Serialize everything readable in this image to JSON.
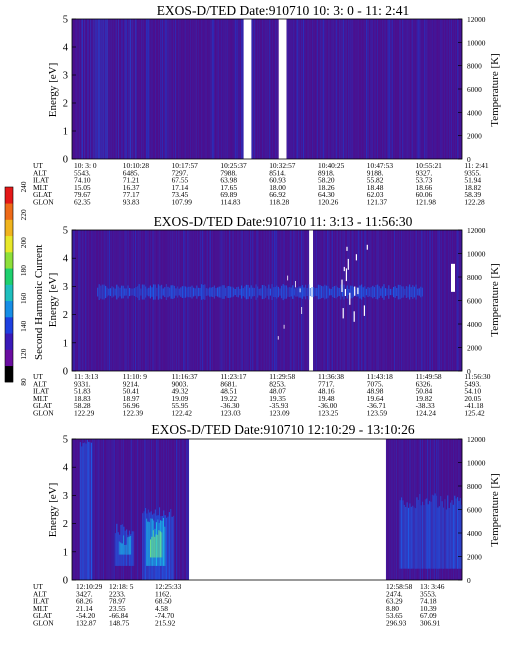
{
  "colors": {
    "background": "#ffffff",
    "plasma_bg": "#4b0f8e",
    "plasma_stripe_a": "#3923a8",
    "plasma_stripe_b": "#2235c4",
    "band_blue": "#1d5ce8",
    "band_cyan": "#1ab8e6",
    "band_green": "#7cf57a",
    "gap": "#ffffff"
  },
  "colorbar": {
    "label": "Second Harmonic Current",
    "ticks": [
      "80",
      "120",
      "140",
      "160",
      "180",
      "200",
      "220",
      "240"
    ],
    "colors": [
      "#000000",
      "#6a0da0",
      "#3a1ab8",
      "#1e40e0",
      "#168ee6",
      "#1fbfbe",
      "#1ed06e",
      "#8ee03a",
      "#e8e82a",
      "#f0b41e",
      "#ee6a18",
      "#e41818"
    ]
  },
  "chart_data": [
    {
      "type": "heatmap",
      "title": "EXOS-D/TED   Date:910710  10: 3: 0 - 11: 2:41",
      "ylabel": "Energy [eV]",
      "y2label": "Temperature [K]",
      "ylim": [
        0,
        5
      ],
      "y2lim": [
        0,
        12000
      ],
      "yticks": [
        "0",
        "1",
        "2",
        "3",
        "4",
        "5"
      ],
      "y2ticks": [
        "0",
        "2000",
        "4000",
        "6000",
        "8000",
        "10000",
        "12000"
      ],
      "gaps": [
        [
          0.44,
          0.46
        ],
        [
          0.53,
          0.55
        ]
      ],
      "features": [],
      "orbit_table": {
        "row_labels": [
          "UT",
          "ALT",
          "ILAT",
          "MLT",
          "GLAT",
          "GLON"
        ],
        "columns": [
          [
            "10: 3: 0",
            "5543.",
            "74.10",
            "15.05",
            "79.67",
            "62.35"
          ],
          [
            "10:10:28",
            "6485.",
            "71.21",
            "16.37",
            "77.17",
            "93.83"
          ],
          [
            "10:17:57",
            "7297.",
            "67.55",
            "17.14",
            "73.45",
            "107.99"
          ],
          [
            "10:25:37",
            "7988.",
            "63.98",
            "17.65",
            "69.89",
            "114.83"
          ],
          [
            "10:32:57",
            "8514.",
            "60.93",
            "18.00",
            "66.92",
            "118.28"
          ],
          [
            "10:40:25",
            "8918.",
            "58.20",
            "18.26",
            "64.30",
            "120.26"
          ],
          [
            "10:47:53",
            "9188.",
            "55.82",
            "18.48",
            "62.03",
            "121.37"
          ],
          [
            "10:55:21",
            "9327.",
            "53.73",
            "18.66",
            "60.06",
            "121.98"
          ],
          [
            "11: 2:41",
            "9355.",
            "51.94",
            "18.82",
            "58.39",
            "122.28"
          ]
        ]
      }
    },
    {
      "type": "heatmap",
      "title": "EXOS-D/TED   Date:910710  11: 3:13 - 11:56:30",
      "ylabel": "Energy [eV]",
      "y2label": "Temperature [K]",
      "ylim": [
        0,
        5
      ],
      "y2lim": [
        0,
        12000
      ],
      "yticks": [
        "0",
        "1",
        "2",
        "3",
        "4",
        "5"
      ],
      "y2ticks": [
        "0",
        "2000",
        "4000",
        "6000",
        "8000",
        "10000",
        "12000"
      ],
      "gaps": [
        [
          0.608,
          0.618
        ]
      ],
      "features": [],
      "orbit_table": {
        "row_labels": [
          "UT",
          "ALT",
          "ILAT",
          "MLT",
          "GLAT",
          "GLON"
        ],
        "columns": [
          [
            "11: 3:13",
            "9331.",
            "51.83",
            "18.83",
            "58.28",
            "122.29"
          ],
          [
            "11:10: 9",
            "9214.",
            "50.41",
            "18.97",
            "56.96",
            "122.39"
          ],
          [
            "11:16:37",
            "9003.",
            "49.32",
            "19.09",
            "55.95",
            "122.42"
          ],
          [
            "11:23:17",
            "8681.",
            "48.51",
            "19.22",
            "-36.30",
            "123.03"
          ],
          [
            "11:29:58",
            "8253.",
            "48.07",
            "19.35",
            "-35.93",
            "123.09"
          ],
          [
            "11:36:38",
            "7717.",
            "48.16",
            "19.48",
            "-36.00",
            "123.25"
          ],
          [
            "11:43:18",
            "7075.",
            "48.98",
            "19.64",
            "-36.71",
            "123.59"
          ],
          [
            "11:49:58",
            "6326.",
            "50.84",
            "19.82",
            "-38.33",
            "124.24"
          ],
          [
            "11:56:30",
            "5493.",
            "54.10",
            "20.05",
            "-41.18",
            "125.42"
          ]
        ]
      }
    },
    {
      "type": "heatmap",
      "title": "EXOS-D/TED   Date:910710  12:10:29 - 13:10:26",
      "ylabel": "Energy [eV]",
      "y2label": "Temperature [K]",
      "ylim": [
        0,
        5
      ],
      "y2lim": [
        0,
        12000
      ],
      "yticks": [
        "0",
        "1",
        "2",
        "3",
        "4",
        "5"
      ],
      "y2ticks": [
        "0",
        "2000",
        "4000",
        "6000",
        "8000",
        "10000",
        "12000"
      ],
      "data_spans": [
        [
          0.0,
          0.3
        ],
        [
          0.805,
          1.0
        ]
      ],
      "features": [],
      "orbit_table": {
        "row_labels": [
          "UT",
          "ALT",
          "ILAT",
          "MLT",
          "GLAT",
          "GLON"
        ],
        "columns": [
          [
            "12:10:29",
            "3427.",
            "68.26",
            "21.14",
            "-54.20",
            "132.87"
          ],
          [
            "12:18: 5",
            "2233.",
            "78.97",
            "23.55",
            "-66.84",
            "148.75"
          ],
          [
            "12:25:33",
            "1162.",
            "68.50",
            "4.58",
            "-74.70",
            "215.92"
          ],
          [
            "12:58:58",
            "2474.",
            "63.29",
            "8.80",
            "53.65",
            "296.93"
          ],
          [
            "13: 3:46",
            "3553.",
            "74.18",
            "10.39",
            "67.09",
            "306.91"
          ]
        ]
      }
    }
  ]
}
